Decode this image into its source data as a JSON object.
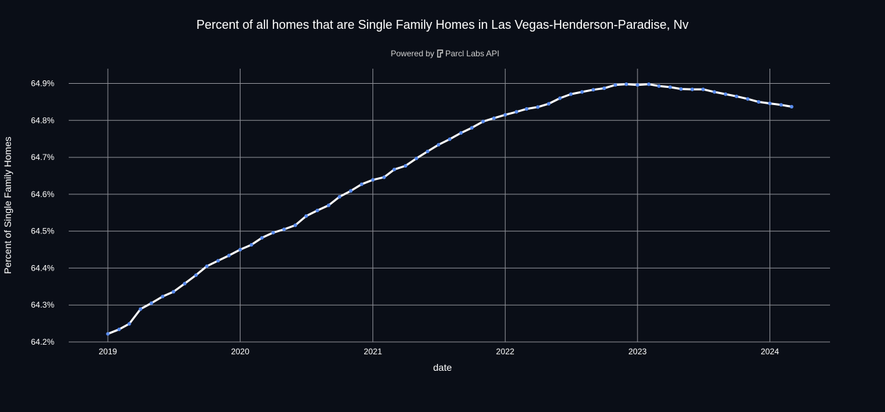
{
  "chart_data": {
    "type": "line",
    "title": "Percent of all homes that are Single Family Homes in Las Vegas-Henderson-Paradise, Nv",
    "subtitle_prefix": "Powered by",
    "subtitle_brand": "Parcl Labs API",
    "brand_icon": "parcl-logo-icon",
    "xlabel": "date",
    "ylabel": "Percent of Single Family Homes",
    "xlim": [
      "2018-09-15",
      "2024-06-15"
    ],
    "ylim": [
      64.2,
      64.94
    ],
    "x_ticks": [
      "2019",
      "2020",
      "2021",
      "2022",
      "2023",
      "2024"
    ],
    "y_ticks": [
      "64.2%",
      "64.3%",
      "64.4%",
      "64.5%",
      "64.6%",
      "64.7%",
      "64.8%",
      "64.9%"
    ],
    "y_tick_values": [
      64.2,
      64.3,
      64.4,
      64.5,
      64.6,
      64.7,
      64.8,
      64.9
    ],
    "grid": true,
    "colors": {
      "background": "#0a0e17",
      "line": "#ffffff",
      "marker": "#5b8def",
      "grid": "#8d8f96"
    },
    "series": [
      {
        "x": [
          "2019-01",
          "2019-02",
          "2019-03",
          "2019-04",
          "2019-05",
          "2019-06",
          "2019-07",
          "2019-08",
          "2019-09",
          "2019-10",
          "2019-11",
          "2019-12",
          "2020-01",
          "2020-02",
          "2020-03",
          "2020-04",
          "2020-05",
          "2020-06",
          "2020-07",
          "2020-08",
          "2020-09",
          "2020-10",
          "2020-11",
          "2020-12",
          "2021-01",
          "2021-02",
          "2021-03",
          "2021-04",
          "2021-05",
          "2021-06",
          "2021-07",
          "2021-08",
          "2021-09",
          "2021-10",
          "2021-11",
          "2021-12",
          "2022-01",
          "2022-02",
          "2022-03",
          "2022-04",
          "2022-05",
          "2022-06",
          "2022-07",
          "2022-08",
          "2022-09",
          "2022-10",
          "2022-11",
          "2022-12",
          "2023-01",
          "2023-02",
          "2023-03",
          "2023-04",
          "2023-05",
          "2023-06",
          "2023-07",
          "2023-08",
          "2023-09",
          "2023-10",
          "2023-11",
          "2023-12",
          "2024-01",
          "2024-02",
          "2024-03"
        ],
        "values": [
          64.222,
          64.234,
          64.249,
          64.289,
          64.305,
          64.323,
          64.336,
          64.358,
          64.381,
          64.405,
          64.42,
          64.434,
          64.45,
          64.463,
          64.482,
          64.496,
          64.505,
          64.516,
          64.541,
          64.556,
          64.57,
          64.593,
          64.609,
          64.627,
          64.639,
          64.646,
          64.667,
          64.677,
          64.697,
          64.716,
          64.734,
          64.749,
          64.766,
          64.78,
          64.797,
          64.806,
          64.815,
          64.823,
          64.831,
          64.836,
          64.845,
          64.86,
          64.871,
          64.877,
          64.883,
          64.887,
          64.896,
          64.898,
          64.896,
          64.898,
          64.893,
          64.89,
          64.885,
          64.884,
          64.884,
          64.877,
          64.871,
          64.865,
          64.858,
          64.85,
          64.846,
          64.842,
          64.837
        ]
      }
    ]
  }
}
